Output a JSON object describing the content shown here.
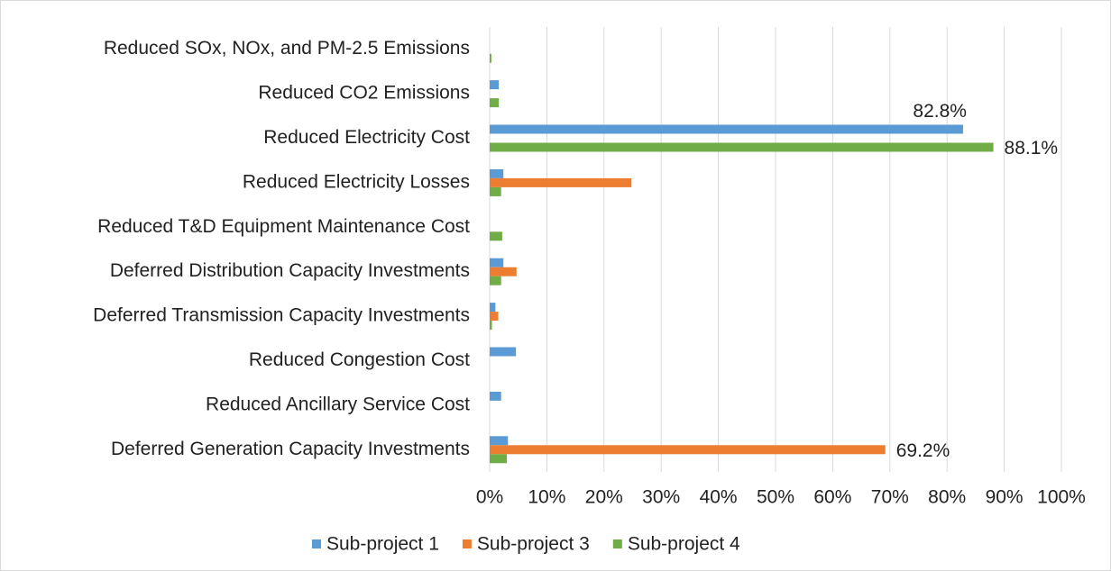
{
  "chart_data": {
    "type": "barh",
    "categories": [
      "Reduced SOx, NOx, and PM-2.5 Emissions",
      "Reduced CO2 Emissions",
      "Reduced Electricity Cost",
      "Reduced Electricity Losses",
      "Reduced T&D Equipment Maintenance Cost",
      "Deferred Distribution Capacity Investments",
      "Deferred Transmission Capacity Investments",
      "Reduced Congestion Cost",
      "Reduced Ancillary Service Cost",
      "Deferred Generation Capacity Investments"
    ],
    "series": [
      {
        "name": "Sub-project 1",
        "color": "#5b9bd5",
        "values": [
          null,
          1.6,
          82.8,
          2.4,
          null,
          2.4,
          1.0,
          4.6,
          2.0,
          3.2
        ],
        "value_labels": [
          null,
          null,
          "82.8%",
          null,
          null,
          null,
          null,
          null,
          null,
          null
        ]
      },
      {
        "name": "Sub-project 3",
        "color": "#ed7d31",
        "values": [
          null,
          null,
          null,
          24.8,
          null,
          4.7,
          1.5,
          null,
          null,
          69.2
        ],
        "value_labels": [
          null,
          null,
          null,
          null,
          null,
          null,
          null,
          null,
          null,
          "69.2%"
        ]
      },
      {
        "name": "Sub-project 4",
        "color": "#70ad47",
        "values": [
          0.3,
          1.6,
          88.1,
          2.0,
          2.2,
          2.0,
          0.4,
          null,
          null,
          3.0
        ],
        "value_labels": [
          null,
          null,
          "88.1%",
          null,
          null,
          null,
          null,
          null,
          null,
          null
        ]
      }
    ],
    "xlim": [
      0,
      100
    ],
    "xticks": [
      {
        "value": 0,
        "label": "0%"
      },
      {
        "value": 10,
        "label": "10%"
      },
      {
        "value": 20,
        "label": "20%"
      },
      {
        "value": 30,
        "label": "30%"
      },
      {
        "value": 40,
        "label": "40%"
      },
      {
        "value": 50,
        "label": "50%"
      },
      {
        "value": 60,
        "label": "60%"
      },
      {
        "value": 70,
        "label": "70%"
      },
      {
        "value": 80,
        "label": "80%"
      },
      {
        "value": 90,
        "label": "90%"
      },
      {
        "value": 100,
        "label": "100%"
      }
    ],
    "grid": true,
    "legend": "bottom"
  }
}
